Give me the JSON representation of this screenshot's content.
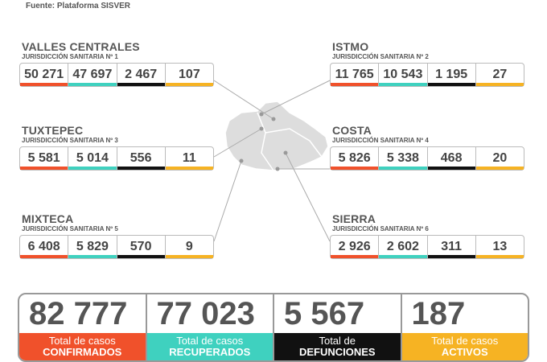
{
  "header": {
    "source": "Fuente: Plataforma SISVER"
  },
  "regions": [
    {
      "name": "VALLES CENTRALES",
      "jurisdiction": "JURISDICCIÓN SANITARIA Nº 1",
      "values": [
        "50 271",
        "47 697",
        "2 467",
        "107"
      ]
    },
    {
      "name": "ISTMO",
      "jurisdiction": "JURISDICCIÓN SANITARIA Nº 2",
      "values": [
        "11 765",
        "10 543",
        "1 195",
        "27"
      ]
    },
    {
      "name": "TUXTEPEC",
      "jurisdiction": "JURISDICCIÓN SANITARIA Nº 3",
      "values": [
        "5 581",
        "5 014",
        "556",
        "11"
      ]
    },
    {
      "name": "COSTA",
      "jurisdiction": "JURISDICCIÓN SANITARIA Nº 4",
      "values": [
        "5 826",
        "5 338",
        "468",
        "20"
      ]
    },
    {
      "name": "MIXTECA",
      "jurisdiction": "JURISDICCIÓN SANITARIA Nº 5",
      "values": [
        "6 408",
        "5 829",
        "570",
        "9"
      ]
    },
    {
      "name": "SIERRA",
      "jurisdiction": "JURISDICCIÓN SANITARIA Nº 6",
      "values": [
        "2 926",
        "2 602",
        "311",
        "13"
      ]
    }
  ],
  "totals": [
    {
      "value": "82 777",
      "label_line1": "Total de casos",
      "label_line2": "CONFIRMADOS"
    },
    {
      "value": "77 023",
      "label_line1": "Total de casos",
      "label_line2": "RECUPERADOS"
    },
    {
      "value": "5 567",
      "label_line1": "Total de",
      "label_line2": "DEFUNCIONES"
    },
    {
      "value": "187",
      "label_line1": "Total de casos",
      "label_line2": "ACTIVOS"
    }
  ]
}
